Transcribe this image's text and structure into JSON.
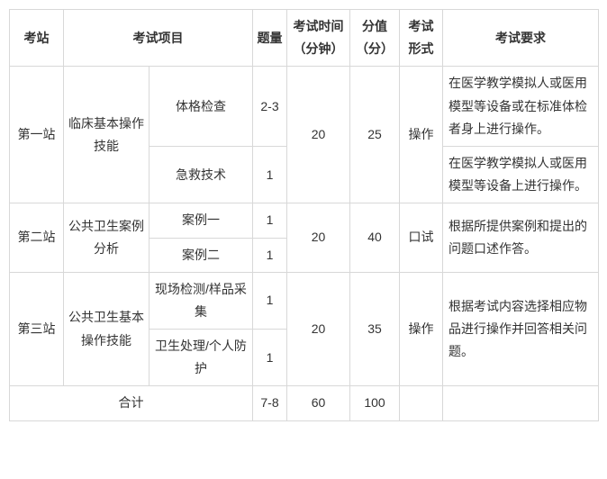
{
  "headers": {
    "station": "考站",
    "project": "考试项目",
    "qty": "题量",
    "time": "考试时间（分钟）",
    "score": "分值（分）",
    "format": "考试形式",
    "req": "考试要求"
  },
  "stations": [
    {
      "name": "第一站",
      "project_main": "临床基本操作技能",
      "time": "20",
      "score": "25",
      "format": "操作",
      "subs": [
        {
          "name": "体格检查",
          "qty": "2-3",
          "req": "在医学教学模拟人或医用 模型等设备或在标准体检者身上进行操作。"
        },
        {
          "name": "急救技术",
          "qty": "1",
          "req": "在医学教学模拟人或医用 模型等设备上进行操作。"
        }
      ]
    },
    {
      "name": "第二站",
      "project_main": "公共卫生案例分析",
      "time": "20",
      "score": "40",
      "format": "口试",
      "req_merged": "根据所提供案例和提出的问题口述作答。",
      "subs": [
        {
          "name": "案例一",
          "qty": "1"
        },
        {
          "name": "案例二",
          "qty": "1"
        }
      ]
    },
    {
      "name": "第三站",
      "project_main": "公共卫生基本操作技能",
      "time": "20",
      "score": "35",
      "format": "操作",
      "req_merged": "根据考试内容选择相应物 品进行操作并回答相关问题。",
      "subs": [
        {
          "name": "现场检测/样品采集",
          "qty": "1"
        },
        {
          "name": "卫生处理/个人防护",
          "qty": "1"
        }
      ]
    }
  ],
  "total": {
    "label": "合计",
    "qty": "7-8",
    "time": "60",
    "score": "100",
    "format": "",
    "req": ""
  },
  "style": {
    "border_color": "#d8d8d8",
    "text_color": "#333333",
    "background_color": "#ffffff",
    "font_size_pt": 14
  }
}
